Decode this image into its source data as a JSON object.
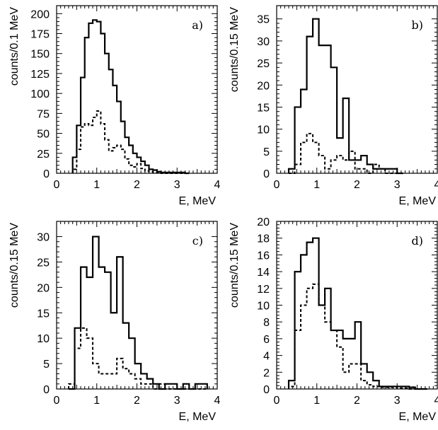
{
  "chart_data": [
    {
      "type": "histogram",
      "label": "a)",
      "xlabel": "E, MeV",
      "ylabel": "counts/0.1 MeV",
      "xlim": [
        0,
        4
      ],
      "ylim": [
        0,
        210
      ],
      "xticks": [
        0,
        1,
        2,
        3,
        4
      ],
      "yticks": [
        0,
        25,
        50,
        75,
        100,
        125,
        150,
        175,
        200
      ],
      "bin_start": 0.4,
      "bin_width": 0.1,
      "series": [
        {
          "style": "solid",
          "values": [
            20,
            60,
            120,
            170,
            188,
            192,
            190,
            175,
            150,
            130,
            110,
            90,
            65,
            45,
            35,
            25,
            20,
            15,
            10,
            5,
            4,
            2,
            1,
            1,
            1,
            1,
            1,
            1,
            0
          ]
        },
        {
          "style": "dashed",
          "values": [
            5,
            30,
            58,
            62,
            60,
            70,
            78,
            62,
            42,
            28,
            32,
            35,
            30,
            18,
            10,
            8,
            12,
            6,
            3,
            2,
            1,
            1,
            0,
            0,
            0,
            0,
            0,
            0,
            0
          ]
        }
      ]
    },
    {
      "type": "histogram",
      "label": "b)",
      "xlabel": "E, MeV",
      "ylabel": "counts/0.15 MeV",
      "xlim": [
        0,
        4
      ],
      "ylim": [
        0,
        38
      ],
      "xticks": [
        0,
        1,
        2,
        3,
        4
      ],
      "yticks": [
        0,
        5,
        10,
        15,
        20,
        25,
        30,
        35
      ],
      "bin_start": 0.3,
      "bin_width": 0.15,
      "series": [
        {
          "style": "solid",
          "values": [
            1,
            15,
            19,
            31,
            35,
            29,
            29,
            24,
            8,
            17,
            3,
            3,
            4,
            2,
            1,
            1,
            1,
            1,
            0
          ]
        },
        {
          "style": "dashed",
          "values": [
            0,
            2,
            7,
            9,
            7,
            4,
            1,
            3,
            4,
            3,
            5,
            1,
            1,
            0,
            2,
            1,
            0,
            0,
            0
          ]
        }
      ]
    },
    {
      "type": "histogram",
      "label": "c)",
      "xlabel": "E, MeV",
      "ylabel": "counts/0.15 MeV",
      "xlim": [
        0,
        4
      ],
      "ylim": [
        0,
        33
      ],
      "xticks": [
        0,
        1,
        2,
        3,
        4
      ],
      "yticks": [
        0,
        5,
        10,
        15,
        20,
        25,
        30
      ],
      "bin_start": 0.3,
      "bin_width": 0.15,
      "series": [
        {
          "style": "solid",
          "values": [
            0,
            12,
            24,
            22,
            30,
            24,
            23,
            15,
            26,
            13,
            10,
            5,
            3,
            2,
            1,
            0,
            1,
            1,
            0,
            1,
            0,
            1,
            1
          ]
        },
        {
          "style": "dashed",
          "values": [
            1,
            8,
            12,
            10,
            5,
            3,
            3,
            3,
            6,
            4,
            3,
            2,
            1,
            1,
            0,
            1,
            0,
            0,
            0,
            0,
            0,
            0,
            0
          ]
        }
      ]
    },
    {
      "type": "histogram",
      "label": "d)",
      "xlabel": "E, MeV",
      "ylabel": "counts/0.15 MeV",
      "xlim": [
        0,
        4
      ],
      "ylim": [
        0,
        20
      ],
      "xticks": [
        0,
        1,
        2,
        3,
        4
      ],
      "yticks": [
        0,
        2,
        4,
        6,
        8,
        10,
        12,
        14,
        16,
        18,
        20
      ],
      "bin_start": 0.3,
      "bin_width": 0.15,
      "series": [
        {
          "style": "solid",
          "values": [
            1,
            14,
            16,
            17.5,
            18,
            10,
            12,
            7,
            7,
            6,
            6,
            8,
            3,
            2,
            1,
            0.3,
            0.3,
            0.3,
            0.3,
            0.3,
            0.2,
            0,
            0
          ]
        },
        {
          "style": "dashed",
          "values": [
            0.3,
            7,
            10,
            12,
            12.5,
            10,
            8,
            7,
            5,
            2,
            3,
            3,
            1,
            0.5,
            0.3,
            0.2,
            0.2,
            0.2,
            0.1,
            0.1,
            0,
            0,
            0
          ]
        }
      ]
    }
  ]
}
